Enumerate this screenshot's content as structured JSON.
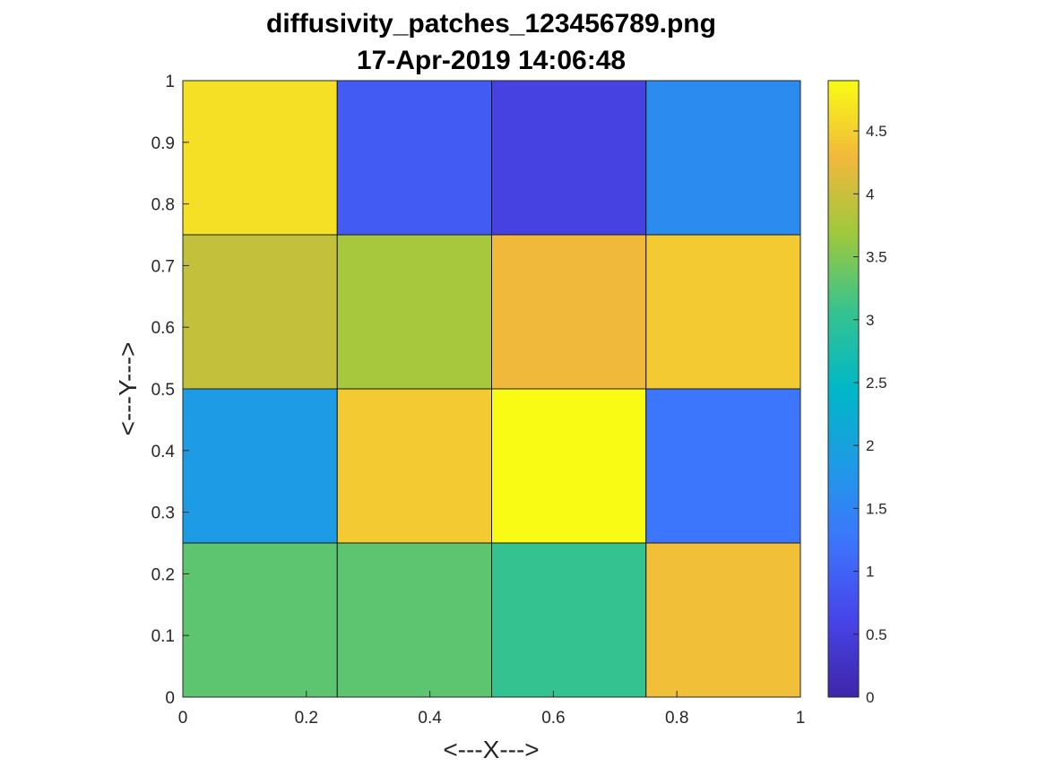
{
  "chart_data": {
    "type": "heatmap",
    "title": "diffusivity_patches_123456789.png",
    "subtitle": "17-Apr-2019 14:06:48",
    "xlabel": "<---X--->",
    "ylabel": "<---Y--->",
    "xlim": [
      0,
      1
    ],
    "ylim": [
      0,
      1
    ],
    "x_edges": [
      0,
      0.25,
      0.5,
      0.75,
      1
    ],
    "y_edges": [
      0,
      0.25,
      0.5,
      0.75,
      1
    ],
    "x_ticks": [
      "0",
      "0.2",
      "0.4",
      "0.6",
      "0.8",
      "1"
    ],
    "y_ticks": [
      "0",
      "0.1",
      "0.2",
      "0.3",
      "0.4",
      "0.5",
      "0.6",
      "0.7",
      "0.8",
      "0.9",
      "1"
    ],
    "grid": false,
    "colormap": "parula",
    "values_by_row_bottom_to_top": [
      [
        3.3,
        3.3,
        3.05,
        4.35
      ],
      [
        1.85,
        4.45,
        4.9,
        1.25
      ],
      [
        3.95,
        3.75,
        4.3,
        4.45
      ],
      [
        4.65,
        0.9,
        0.55,
        1.6
      ]
    ],
    "colorbar": {
      "range": [
        0,
        4.9
      ],
      "ticks": [
        "0",
        "0.5",
        "1",
        "1.5",
        "2",
        "2.5",
        "3",
        "3.5",
        "4",
        "4.5"
      ],
      "location": "right"
    }
  }
}
